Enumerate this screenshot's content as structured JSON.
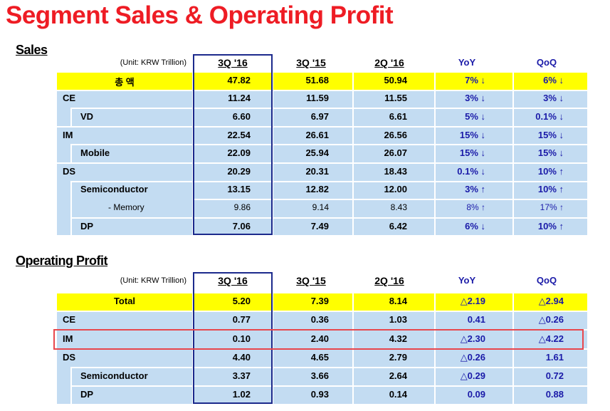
{
  "title": "Segment Sales & Operating Profit",
  "sales": {
    "heading": "Sales",
    "unit": "(Unit: KRW Trillion)",
    "columns": [
      "3Q '16",
      "3Q '15",
      "2Q '16",
      "YoY",
      "QoQ"
    ],
    "rows": [
      {
        "label": "총   액",
        "cells": [
          "47.82",
          "51.68",
          "50.94",
          "7% ↓",
          "6% ↓"
        ]
      },
      {
        "label": "CE",
        "cells": [
          "11.24",
          "11.59",
          "11.55",
          "3% ↓",
          "3% ↓"
        ],
        "children": [
          {
            "label": "VD",
            "cells": [
              "6.60",
              "6.97",
              "6.61",
              "5% ↓",
              "0.1% ↓"
            ]
          }
        ]
      },
      {
        "label": "IM",
        "cells": [
          "22.54",
          "26.61",
          "26.56",
          "15% ↓",
          "15% ↓"
        ],
        "children": [
          {
            "label": "Mobile",
            "cells": [
              "22.09",
              "25.94",
              "26.07",
              "15% ↓",
              "15% ↓"
            ]
          }
        ]
      },
      {
        "label": "DS",
        "cells": [
          "20.29",
          "20.31",
          "18.43",
          "0.1% ↓",
          "10% ↑"
        ],
        "children": [
          {
            "label": "Semiconductor",
            "cells": [
              "13.15",
              "12.82",
              "12.00",
              "3% ↑",
              "10% ↑"
            ],
            "children": [
              {
                "label": "- Memory",
                "cells": [
                  "9.86",
                  "9.14",
                  "8.43",
                  "8% ↑",
                  "17% ↑"
                ]
              }
            ]
          },
          {
            "label": "DP",
            "cells": [
              "7.06",
              "7.49",
              "6.42",
              "6% ↓",
              "10% ↑"
            ]
          }
        ]
      }
    ]
  },
  "operating_profit": {
    "heading": "Operating Profit",
    "unit": "(Unit: KRW Trillion)",
    "columns": [
      "3Q '16",
      "3Q '15",
      "2Q '16",
      "YoY",
      "QoQ"
    ],
    "rows": [
      {
        "label": "Total",
        "cells": [
          "5.20",
          "7.39",
          "8.14",
          "△2.19",
          "△2.94"
        ]
      },
      {
        "label": "CE",
        "cells": [
          "0.77",
          "0.36",
          "1.03",
          "0.41",
          "△0.26"
        ]
      },
      {
        "label": "IM",
        "cells": [
          "0.10",
          "2.40",
          "4.32",
          "△2.30",
          "△4.22"
        ]
      },
      {
        "label": "DS",
        "cells": [
          "4.40",
          "4.65",
          "2.79",
          "△0.26",
          "1.61"
        ],
        "children": [
          {
            "label": "Semiconductor",
            "cells": [
              "3.37",
              "3.66",
              "2.64",
              "△0.29",
              "0.72"
            ]
          },
          {
            "label": "DP",
            "cells": [
              "1.02",
              "0.93",
              "0.14",
              "0.09",
              "0.88"
            ]
          }
        ]
      }
    ]
  }
}
